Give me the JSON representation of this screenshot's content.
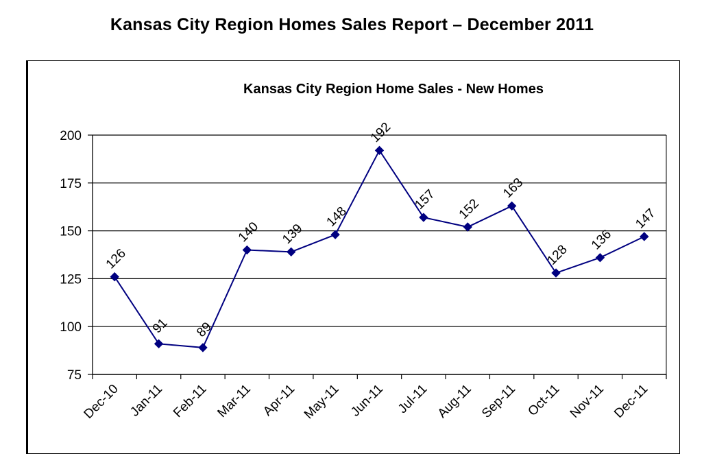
{
  "page": {
    "title": "Kansas City Region Homes Sales Report – December 2011"
  },
  "chart_data": {
    "type": "line",
    "title": "Kansas City Region Home Sales - New Homes",
    "xlabel": "",
    "ylabel": "",
    "categories": [
      "Dec-10",
      "Jan-11",
      "Feb-11",
      "Mar-11",
      "Apr-11",
      "May-11",
      "Jun-11",
      "Jul-11",
      "Aug-11",
      "Sep-11",
      "Oct-11",
      "Nov-11",
      "Dec-11"
    ],
    "series": [
      {
        "values": [
          126,
          91,
          89,
          140,
          139,
          148,
          192,
          157,
          152,
          163,
          128,
          136,
          147
        ],
        "color": "#000080"
      }
    ],
    "data_labels": [
      "126",
      "91",
      "89",
      "140",
      "139",
      "148",
      "192",
      "157",
      "152",
      "163",
      "128",
      "136",
      "147"
    ],
    "y_ticks": [
      "75",
      "100",
      "125",
      "150",
      "175",
      "200"
    ],
    "ylim": [
      75,
      200
    ],
    "grid": true,
    "legend": "none"
  }
}
